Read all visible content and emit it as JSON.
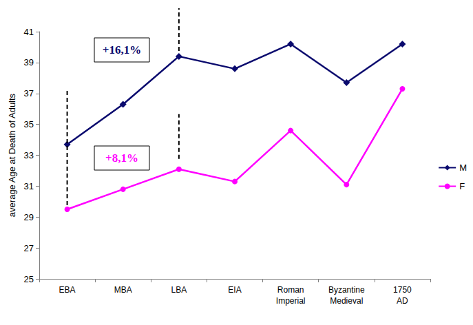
{
  "chart_data": {
    "type": "line",
    "categories": [
      "EBA",
      "MBA",
      "LBA",
      "EIA",
      "Roman Imperial",
      "Byzantine Medieval",
      "1750 AD"
    ],
    "y_label": "average Age at Death of Adults",
    "series": [
      {
        "name": "M",
        "color": "#0a0a6e",
        "marker": "diamond",
        "values": [
          33.7,
          36.3,
          39.4,
          38.6,
          40.2,
          37.7,
          40.2
        ]
      },
      {
        "name": "F",
        "color": "#ff00ff",
        "marker": "circle",
        "values": [
          29.5,
          30.8,
          32.1,
          31.3,
          34.6,
          31.1,
          37.3
        ]
      }
    ],
    "ylim": [
      25,
      41
    ],
    "yticks": [
      25,
      27,
      29,
      31,
      33,
      35,
      37,
      39,
      41
    ],
    "grid": false,
    "legend": "right",
    "annotations": [
      {
        "text": "+16,1%",
        "color": "#0a0a6e"
      },
      {
        "text": "+8,1%",
        "color": "#ff00ff"
      }
    ]
  }
}
